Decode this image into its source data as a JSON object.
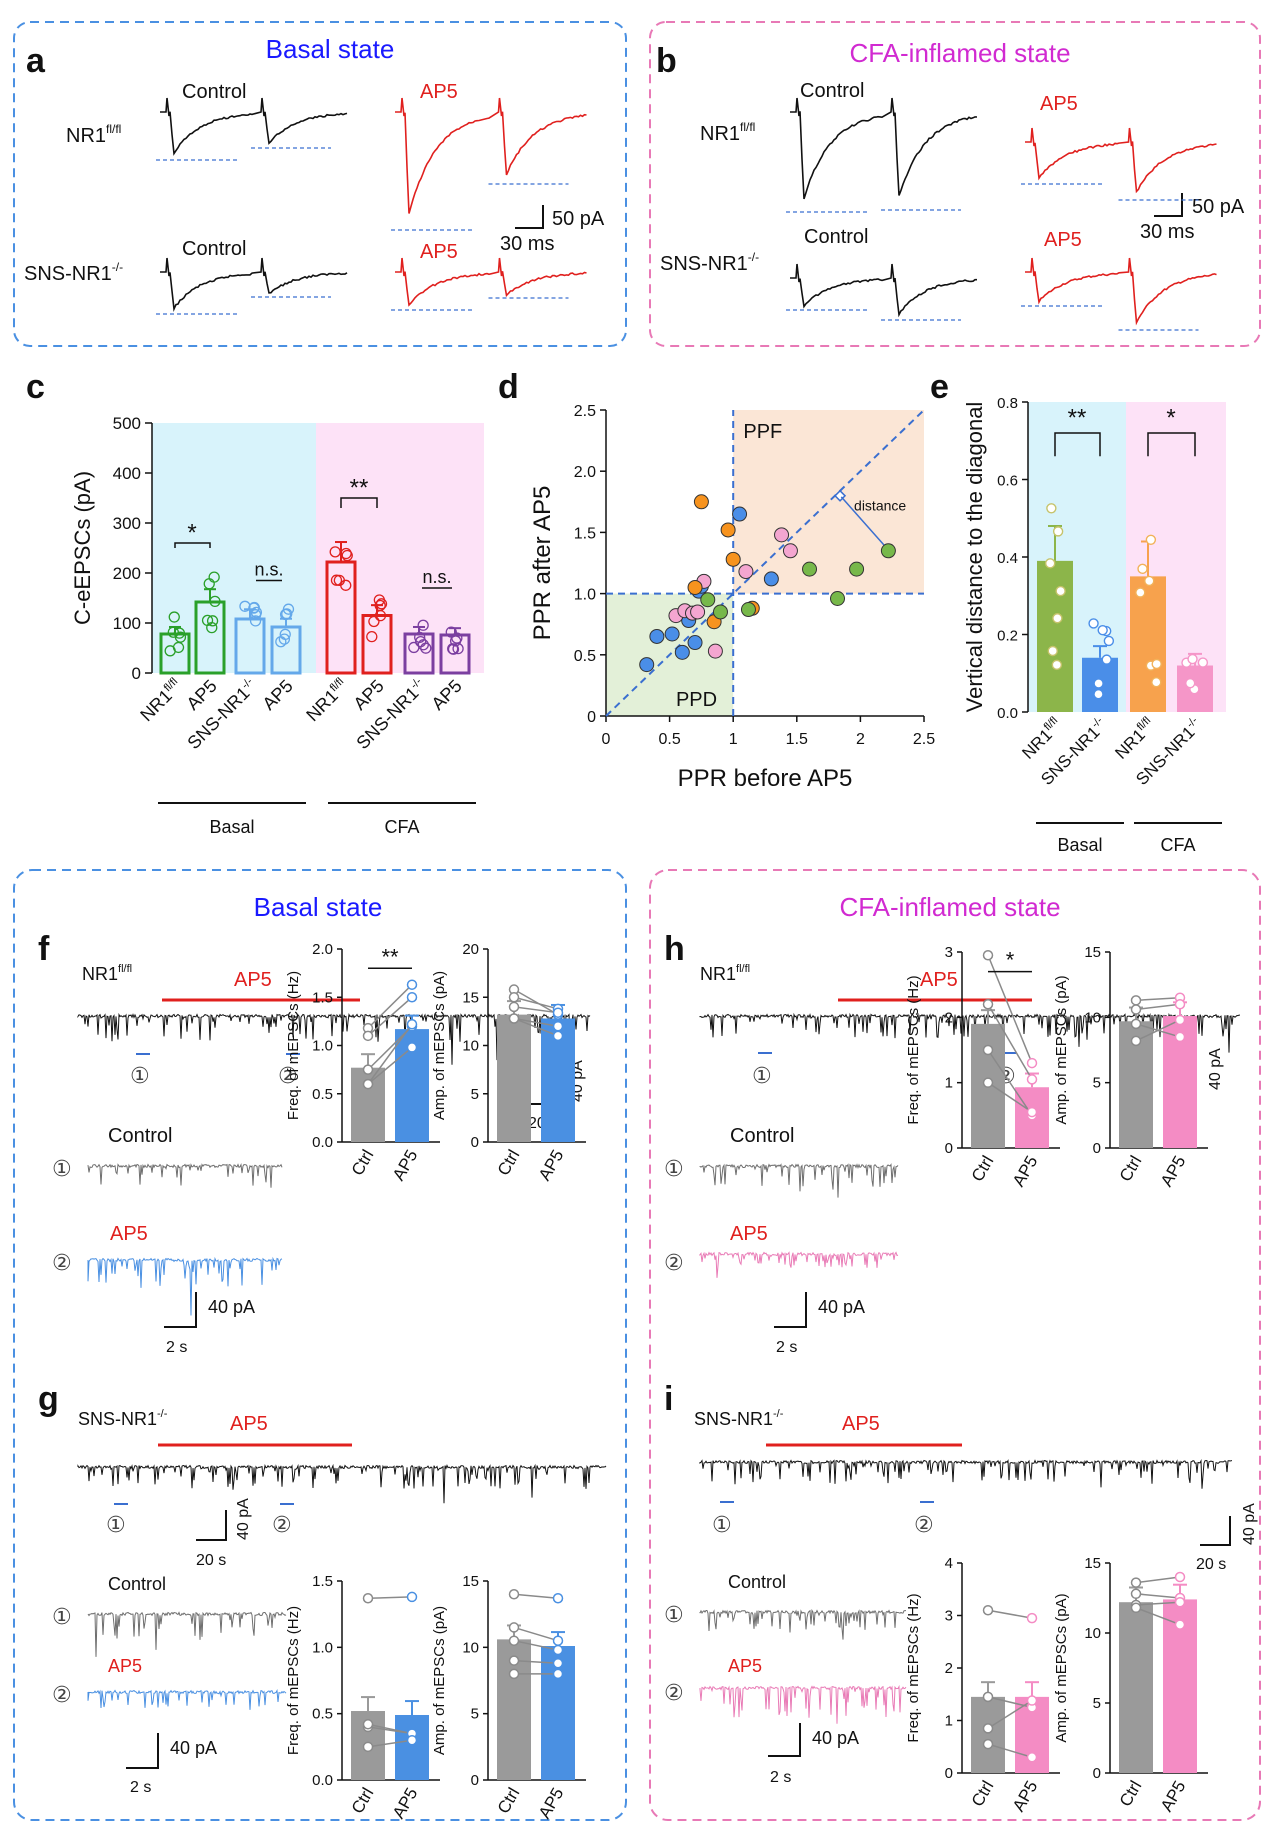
{
  "panel_labels": {
    "a": "a",
    "b": "b",
    "c": "c",
    "d": "d",
    "e": "e",
    "f": "f",
    "g": "g",
    "h": "h",
    "i": "i"
  },
  "titles": {
    "basal_top": "Basal state",
    "cfa_top": "CFA-inflamed state",
    "basal_bottom": "Basal state",
    "cfa_bottom": "CFA-inflamed state"
  },
  "traces_text": {
    "control": "Control",
    "ap5": "AP5",
    "nr1": "NR1",
    "nr1_sup": "fl/fl",
    "sns": "SNS-NR1",
    "sns_sup": "-/-",
    "scale_pa_50": "50 pA",
    "scale_ms_30": "30 ms",
    "scale_pa_40": "40 pA",
    "scale_s_20": "20 s",
    "scale_s_2": "2 s",
    "marker1": "①",
    "marker2": "②",
    "star1": "*",
    "star2": "**",
    "ns": "n.s."
  },
  "colors": {
    "basal_border": "#4a90e2",
    "cfa_border": "#e879b6",
    "basal_title": "#1a1aff",
    "cfa_title": "#d12ad1",
    "red": "#e0201e",
    "black": "#111111",
    "blue_line": "#3a6fd0",
    "trace_grey": "#6e6e6e",
    "trace_blue": "#4a90e2",
    "trace_pink": "#e97bb6"
  },
  "chart_data": [
    {
      "id": "c",
      "type": "bar",
      "ylabel": "C-eEPSCs (pA)",
      "ylim": [
        0,
        500
      ],
      "yticks": [
        "0",
        "100",
        "200",
        "300",
        "400",
        "500"
      ],
      "categories": [
        "NR1fl/fl",
        "AP5",
        "SNS-NR1-/-",
        "AP5",
        "NR1fl/fl",
        "AP5",
        "SNS-NR1-/-",
        "AP5"
      ],
      "values": [
        78,
        142,
        108,
        92,
        222,
        115,
        78,
        76
      ],
      "groups": [
        {
          "label": "Basal"
        },
        {
          "label": "CFA"
        }
      ],
      "sig": [
        "*",
        "n.s.",
        "**",
        "n.s."
      ]
    },
    {
      "id": "d",
      "type": "scatter",
      "xlabel": "PPR before AP5",
      "ylabel": "PPR after AP5",
      "xlim": [
        0,
        2.5
      ],
      "ylim": [
        0,
        2.5
      ],
      "xticks": [
        "0",
        "0.5",
        "1",
        "1.5",
        "2",
        "2.5"
      ],
      "yticks": [
        "0",
        "0.5",
        "1.0",
        "1.5",
        "2.0",
        "2.5"
      ],
      "region_labels": {
        "ppf": "PPF",
        "ppd": "PPD",
        "distance": "distance"
      },
      "points": [
        [
          0.32,
          0.42
        ],
        [
          0.4,
          0.65
        ],
        [
          0.52,
          0.67
        ],
        [
          0.6,
          0.52
        ],
        [
          0.65,
          0.78
        ],
        [
          0.7,
          0.6
        ],
        [
          0.73,
          1.02
        ],
        [
          0.75,
          1.06
        ],
        [
          1.05,
          1.65
        ],
        [
          1.3,
          1.12
        ],
        [
          0.55,
          0.82
        ],
        [
          0.62,
          0.86
        ],
        [
          0.68,
          0.84
        ],
        [
          0.72,
          0.85
        ],
        [
          0.77,
          1.1
        ],
        [
          0.86,
          0.53
        ],
        [
          1.1,
          1.18
        ],
        [
          1.45,
          1.35
        ],
        [
          1.38,
          1.48
        ],
        [
          0.75,
          1.75
        ],
        [
          0.7,
          1.05
        ],
        [
          0.85,
          0.77
        ],
        [
          0.96,
          1.52
        ],
        [
          1.0,
          1.28
        ],
        [
          1.15,
          0.88
        ],
        [
          0.8,
          0.95
        ],
        [
          0.9,
          0.85
        ],
        [
          1.12,
          0.87
        ],
        [
          1.6,
          1.2
        ],
        [
          1.82,
          0.96
        ],
        [
          1.97,
          1.2
        ],
        [
          2.22,
          1.35
        ]
      ]
    },
    {
      "id": "e",
      "type": "bar",
      "ylabel": "Vertical distance to the diagonal",
      "ylim": [
        0,
        0.8
      ],
      "yticks": [
        "0.0",
        "0.2",
        "0.4",
        "0.6",
        "0.8"
      ],
      "categories": [
        "NR1fl/fl",
        "SNS-NR1-/-",
        "NR1fl/fl",
        "SNS-NR1-/-"
      ],
      "values": [
        0.39,
        0.14,
        0.35,
        0.12
      ],
      "groups": [
        {
          "label": "Basal"
        },
        {
          "label": "CFA"
        }
      ],
      "sig": [
        "**",
        "*"
      ]
    },
    {
      "id": "f_freq",
      "type": "bar",
      "ylabel": "Freq. of mEPSCs (Hz)",
      "ylim": [
        0,
        2.0
      ],
      "yticks": [
        "0.0",
        "0.5",
        "1.0",
        "1.5",
        "2.0"
      ],
      "categories": [
        "Ctrl",
        "AP5"
      ],
      "values": [
        0.77,
        1.17
      ],
      "sig": "**"
    },
    {
      "id": "f_amp",
      "type": "bar",
      "ylabel": "Amp. of mEPSCs (pA)",
      "ylim": [
        0,
        20
      ],
      "yticks": [
        "0",
        "5",
        "10",
        "15",
        "20"
      ],
      "categories": [
        "Ctrl",
        "AP5"
      ],
      "values": [
        13.2,
        12.8
      ]
    },
    {
      "id": "g_freq",
      "type": "bar",
      "ylabel": "Freq. of mEPSCs (Hz)",
      "ylim": [
        0,
        1.5
      ],
      "yticks": [
        "0.0",
        "0.5",
        "1.0",
        "1.5"
      ],
      "categories": [
        "Ctrl",
        "AP5"
      ],
      "values": [
        0.52,
        0.49
      ]
    },
    {
      "id": "g_amp",
      "type": "bar",
      "ylabel": "Amp. of mEPSCs (pA)",
      "ylim": [
        0,
        15
      ],
      "yticks": [
        "0",
        "5",
        "10",
        "15"
      ],
      "categories": [
        "Ctrl",
        "AP5"
      ],
      "values": [
        10.6,
        10.1
      ]
    },
    {
      "id": "h_freq",
      "type": "bar",
      "ylabel": "Freq. of mEPSCs (Hz)",
      "ylim": [
        0,
        3
      ],
      "yticks": [
        "0",
        "1",
        "2",
        "3"
      ],
      "categories": [
        "Ctrl",
        "AP5"
      ],
      "values": [
        1.9,
        0.93
      ],
      "sig": "*"
    },
    {
      "id": "h_amp",
      "type": "bar",
      "ylabel": "Amp. of mEPSCs (pA)",
      "ylim": [
        0,
        15
      ],
      "yticks": [
        "0",
        "5",
        "10",
        "15"
      ],
      "categories": [
        "Ctrl",
        "AP5"
      ],
      "values": [
        9.7,
        10.1
      ]
    },
    {
      "id": "i_freq",
      "type": "bar",
      "ylabel": "Freq. of mEPSCs (Hz)",
      "ylim": [
        0,
        4
      ],
      "yticks": [
        "0",
        "1",
        "2",
        "3",
        "4"
      ],
      "categories": [
        "Ctrl",
        "AP5"
      ],
      "values": [
        1.45,
        1.45
      ]
    },
    {
      "id": "i_amp",
      "type": "bar",
      "ylabel": "Amp. of mEPSCs (pA)",
      "ylim": [
        0,
        15
      ],
      "yticks": [
        "0",
        "5",
        "10",
        "15"
      ],
      "categories": [
        "Ctrl",
        "AP5"
      ],
      "values": [
        12.2,
        12.4
      ]
    }
  ]
}
